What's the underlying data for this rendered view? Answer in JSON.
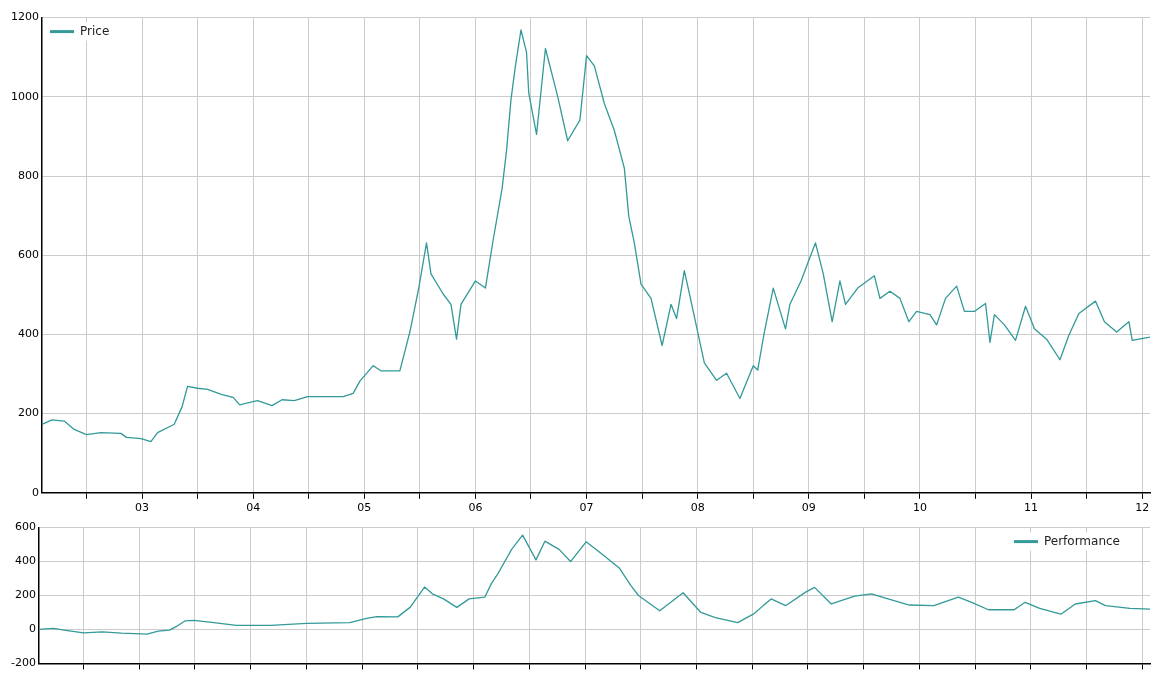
{
  "chart_data": [
    {
      "type": "line",
      "xlim": [
        2002.1,
        2012.07
      ],
      "ylim": [
        0,
        1200
      ],
      "xticks": [
        {
          "value": 2002.5,
          "label": null
        },
        {
          "value": 2003,
          "label": "03"
        },
        {
          "value": 2003.5,
          "label": null
        },
        {
          "value": 2004,
          "label": "04"
        },
        {
          "value": 2004.5,
          "label": null
        },
        {
          "value": 2005,
          "label": "05"
        },
        {
          "value": 2005.5,
          "label": null
        },
        {
          "value": 2006,
          "label": "06"
        },
        {
          "value": 2006.5,
          "label": null
        },
        {
          "value": 2007,
          "label": "07"
        },
        {
          "value": 2007.5,
          "label": null
        },
        {
          "value": 2008,
          "label": "08"
        },
        {
          "value": 2008.5,
          "label": null
        },
        {
          "value": 2009,
          "label": "09"
        },
        {
          "value": 2009.5,
          "label": null
        },
        {
          "value": 2010,
          "label": "10"
        },
        {
          "value": 2010.5,
          "label": null
        },
        {
          "value": 2011,
          "label": "11"
        },
        {
          "value": 2011.5,
          "label": null
        },
        {
          "value": 2012,
          "label": "12"
        }
      ],
      "yticks": [
        0,
        200,
        400,
        600,
        800,
        1000,
        1200
      ],
      "grid": true,
      "legend": "top left",
      "series": [
        {
          "name": "Price",
          "color": "#339999",
          "x": [
            2002.1,
            2002.19,
            2002.3,
            2002.39,
            2002.5,
            2002.63,
            2002.81,
            2002.86,
            2002.99,
            2003.08,
            2003.14,
            2003.29,
            2003.36,
            2003.41,
            2003.5,
            2003.59,
            2003.72,
            2003.82,
            2003.88,
            2004.04,
            2004.17,
            2004.26,
            2004.37,
            2004.49,
            2004.67,
            2004.81,
            2004.9,
            2004.96,
            2005.08,
            2005.15,
            2005.32,
            2005.41,
            2005.49,
            2005.56,
            2005.6,
            2005.71,
            2005.78,
            2005.83,
            2005.87,
            2006.0,
            2006.09,
            2006.16,
            2006.24,
            2006.28,
            2006.32,
            2006.36,
            2006.41,
            2006.46,
            2006.48,
            2006.55,
            2006.63,
            2006.74,
            2006.83,
            2006.94,
            2007.0,
            2007.07,
            2007.16,
            2007.25,
            2007.34,
            2007.38,
            2007.43,
            2007.49,
            2007.58,
            2007.68,
            2007.76,
            2007.81,
            2007.88,
            2007.96,
            2008.06,
            2008.17,
            2008.26,
            2008.38,
            2008.5,
            2008.54,
            2008.6,
            2008.68,
            2008.79,
            2008.83,
            2008.93,
            2009.0,
            2009.06,
            2009.13,
            2009.21,
            2009.28,
            2009.33,
            2009.44,
            2009.59,
            2009.64,
            2009.73,
            2009.82,
            2009.9,
            2009.97,
            2010.09,
            2010.15,
            2010.23,
            2010.33,
            2010.4,
            2010.49,
            2010.59,
            2010.63,
            2010.67,
            2010.76,
            2010.86,
            2010.95,
            2011.03,
            2011.14,
            2011.26,
            2011.34,
            2011.43,
            2011.58,
            2011.66,
            2011.77,
            2011.88,
            2011.91,
            2012.07
          ],
          "values": [
            173,
            184,
            181,
            160,
            147,
            152,
            150,
            140,
            137,
            129,
            152,
            173,
            217,
            269,
            264,
            261,
            248,
            241,
            222,
            233,
            220,
            235,
            233,
            243,
            243,
            243,
            251,
            282,
            321,
            308,
            308,
            406,
            517,
            631,
            553,
            502,
            476,
            388,
            476,
            535,
            517,
            639,
            768,
            864,
            993,
            1078,
            1169,
            1112,
            1009,
            905,
            1122,
            1001,
            889,
            941,
            1104,
            1078,
            983,
            915,
            820,
            698,
            631,
            527,
            491,
            372,
            476,
            440,
            561,
            458,
            328,
            284,
            302,
            238,
            321,
            310,
            406,
            517,
            414,
            476,
            535,
            587,
            631,
            553,
            432,
            535,
            476,
            517,
            548,
            491,
            509,
            491,
            432,
            458,
            450,
            424,
            491,
            522,
            458,
            458,
            478,
            380,
            450,
            424,
            385,
            471,
            414,
            388,
            336,
            398,
            453,
            484,
            432,
            406,
            432,
            385,
            393
          ]
        }
      ]
    },
    {
      "type": "line",
      "xlim": [
        2002.1,
        2012.07
      ],
      "ylim": [
        -200,
        600
      ],
      "xticks": [
        {
          "value": 2002.5,
          "label": null
        },
        {
          "value": 2003,
          "label": null
        },
        {
          "value": 2003.5,
          "label": null
        },
        {
          "value": 2004,
          "label": null
        },
        {
          "value": 2004.5,
          "label": null
        },
        {
          "value": 2005,
          "label": null
        },
        {
          "value": 2005.5,
          "label": null
        },
        {
          "value": 2006,
          "label": null
        },
        {
          "value": 2006.5,
          "label": null
        },
        {
          "value": 2007,
          "label": null
        },
        {
          "value": 2007.5,
          "label": null
        },
        {
          "value": 2008,
          "label": null
        },
        {
          "value": 2008.5,
          "label": null
        },
        {
          "value": 2009,
          "label": null
        },
        {
          "value": 2009.5,
          "label": null
        },
        {
          "value": 2010,
          "label": null
        },
        {
          "value": 2010.5,
          "label": null
        },
        {
          "value": 2011,
          "label": null
        },
        {
          "value": 2011.5,
          "label": null
        },
        {
          "value": 2012,
          "label": null
        }
      ],
      "yticks": [
        -200,
        0,
        200,
        400,
        600
      ],
      "grid": true,
      "legend": "top right",
      "tick_labels": "y",
      "series": [
        {
          "name": "Performance",
          "color": "#339999",
          "x": [
            2002.1,
            2002.23,
            2002.34,
            2002.5,
            2002.67,
            2002.84,
            2003.07,
            2003.17,
            2003.27,
            2003.34,
            2003.41,
            2003.49,
            2003.67,
            2003.87,
            2004.18,
            2004.5,
            2004.89,
            2005.03,
            2005.13,
            2005.32,
            2005.43,
            2005.56,
            2005.63,
            2005.73,
            2005.85,
            2005.96,
            2006.1,
            2006.16,
            2006.22,
            2006.34,
            2006.44,
            2006.56,
            2006.64,
            2006.77,
            2006.87,
            2007.01,
            2007.14,
            2007.31,
            2007.41,
            2007.48,
            2007.67,
            2007.77,
            2007.88,
            2008.04,
            2008.17,
            2008.37,
            2008.51,
            2008.67,
            2008.8,
            2008.98,
            2009.06,
            2009.21,
            2009.42,
            2009.57,
            2009.72,
            2009.91,
            2010.13,
            2010.35,
            2010.47,
            2010.62,
            2010.85,
            2010.95,
            2011.08,
            2011.27,
            2011.4,
            2011.58,
            2011.67,
            2011.89,
            2012.07
          ],
          "values": [
            0,
            6,
            -6,
            -20,
            -14,
            -22,
            -28,
            -10,
            -4,
            20,
            50,
            54,
            40,
            24,
            24,
            36,
            40,
            64,
            76,
            74,
            130,
            250,
            210,
            180,
            130,
            180,
            190,
            270,
            330,
            470,
            556,
            410,
            520,
            470,
            400,
            516,
            450,
            360,
            260,
            200,
            110,
            160,
            216,
            100,
            70,
            40,
            90,
            180,
            140,
            220,
            248,
            150,
            196,
            210,
            180,
            144,
            140,
            190,
            160,
            116,
            116,
            160,
            124,
            90,
            150,
            170,
            140,
            124,
            120
          ]
        }
      ]
    }
  ]
}
